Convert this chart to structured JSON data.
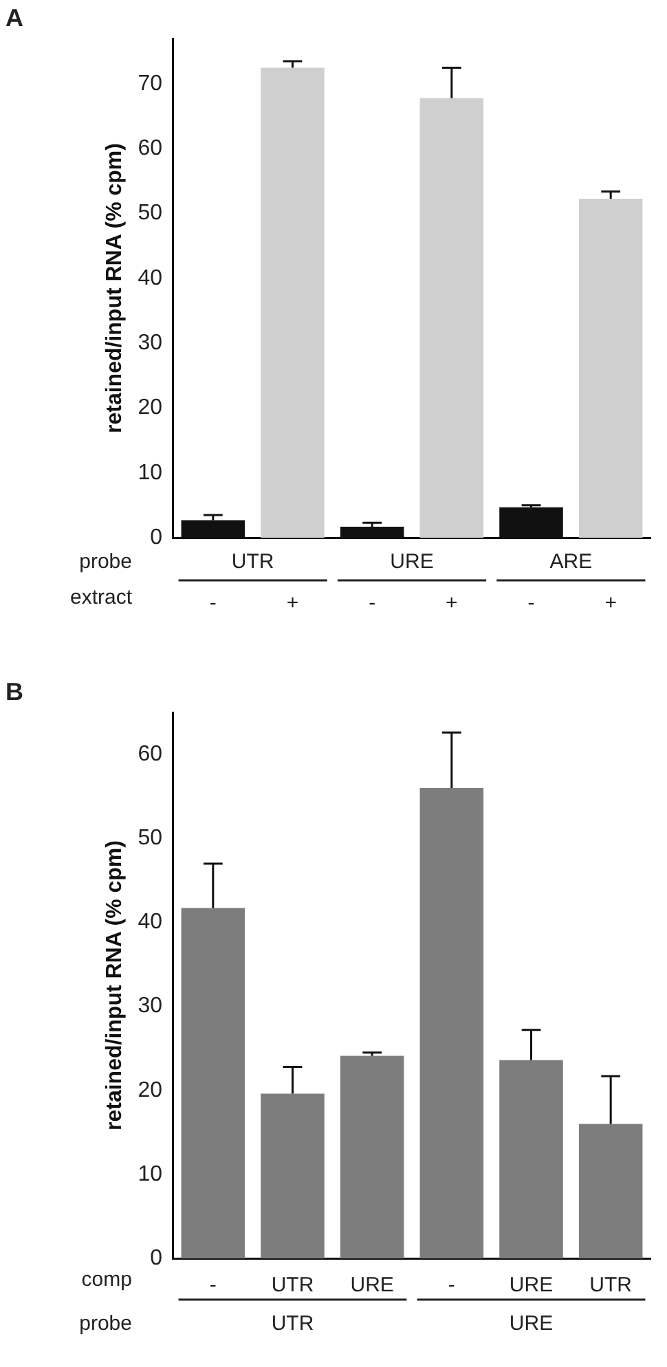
{
  "chart_data": [
    {
      "type": "bar",
      "title": "A",
      "xlabel": "extract",
      "ylabel": "retained/input RNA (% cpm)",
      "categories": [
        "-",
        "+",
        "-",
        "+",
        "-",
        "+"
      ],
      "values": [
        2.7,
        72.5,
        1.7,
        67.8,
        4.7,
        52.3
      ],
      "colors": [
        "#111111",
        "#cfcfcf",
        "#111111",
        "#cfcfcf",
        "#111111",
        "#cfcfcf"
      ],
      "errors": [
        [
          2.7,
          3.5
        ],
        [
          72.5,
          73.5
        ],
        [
          1.7,
          2.3
        ],
        [
          67.8,
          72.5
        ],
        [
          4.7,
          5.0
        ],
        [
          52.3,
          53.4
        ]
      ],
      "annotations": [
        "probe",
        "UTR",
        "URE",
        "ARE"
      ],
      "ylim": [
        0,
        77
      ],
      "yticks": [
        0,
        10,
        20,
        30,
        40,
        50,
        60,
        70
      ],
      "grid": false,
      "legend": false
    },
    {
      "type": "bar",
      "title": "B",
      "xlabel": "comp",
      "ylabel": "retained/input RNA (% cpm)",
      "categories": [
        "-",
        "UTR",
        "URE",
        "-",
        "URE",
        "UTR"
      ],
      "values": [
        41.7,
        19.6,
        24.1,
        56.0,
        23.6,
        16.0
      ],
      "colors": [
        "#7d7d7d",
        "#7d7d7d",
        "#7d7d7d",
        "#7d7d7d",
        "#7d7d7d",
        "#7d7d7d"
      ],
      "errors": [
        [
          41.7,
          47.0
        ],
        [
          19.6,
          22.8
        ],
        [
          24.1,
          24.5
        ],
        [
          56.0,
          62.6
        ],
        [
          23.6,
          27.2
        ],
        [
          16.0,
          21.7
        ]
      ],
      "annotations": [
        "probe",
        "UTR",
        "URE"
      ],
      "ylim": [
        0,
        65
      ],
      "yticks": [
        0,
        10,
        20,
        30,
        40,
        50,
        60
      ],
      "grid": false,
      "legend": false
    }
  ]
}
